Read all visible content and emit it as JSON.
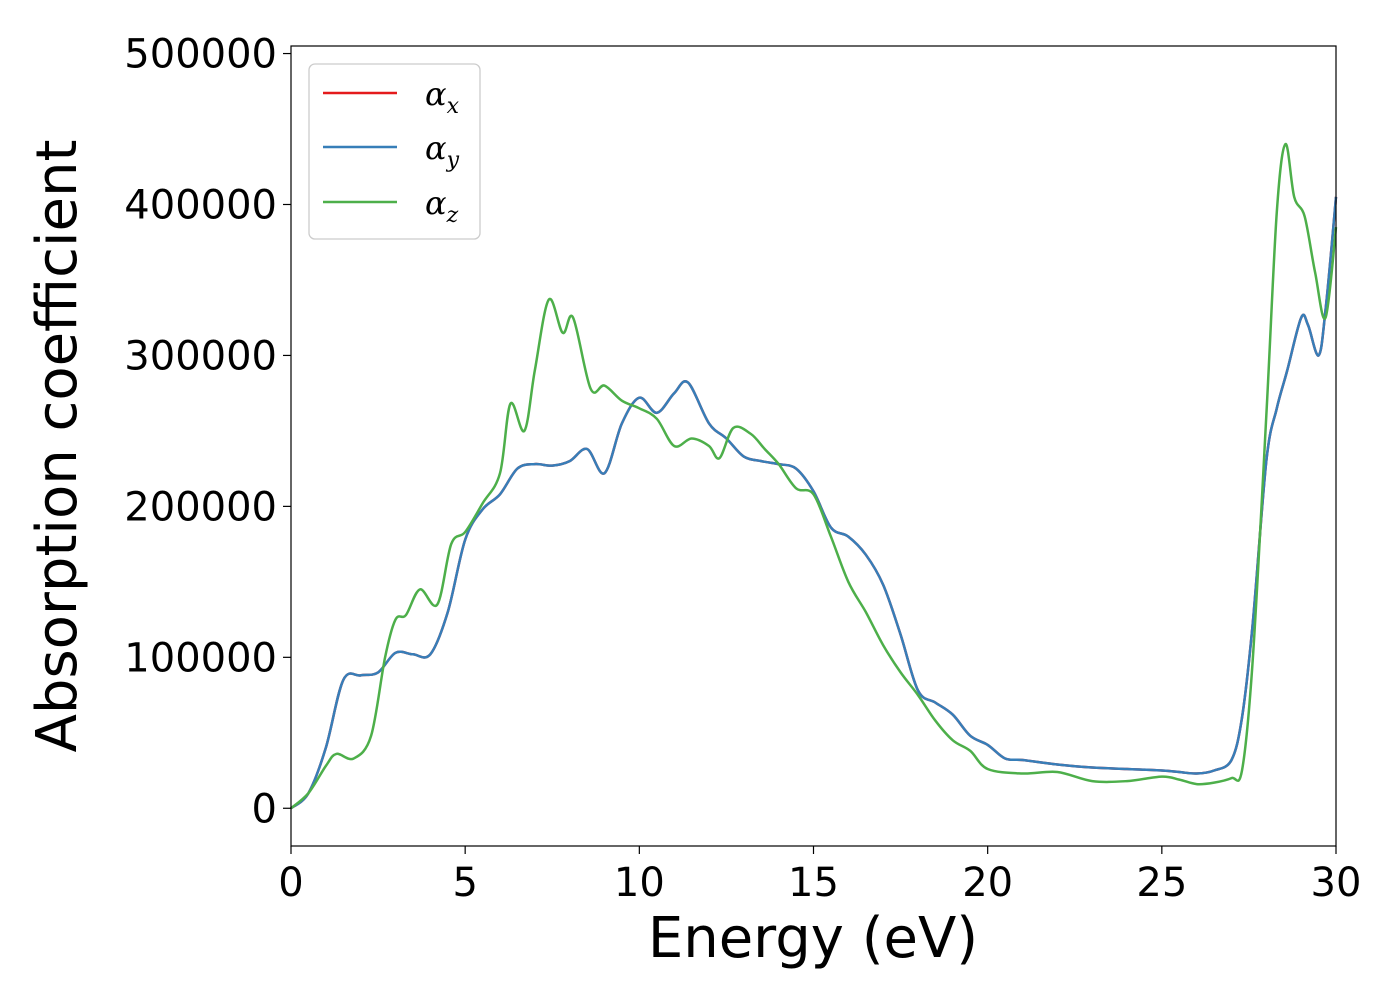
{
  "chart_data": {
    "type": "line",
    "xlabel": "Energy (eV)",
    "ylabel": "Absorption coefficient",
    "xlim": [
      0,
      30
    ],
    "ylim": [
      -25000,
      505000
    ],
    "xticks": [
      0,
      5,
      10,
      15,
      20,
      25,
      30
    ],
    "yticks": [
      0,
      100000,
      200000,
      300000,
      400000,
      500000
    ],
    "xtick_labels": [
      "0",
      "5",
      "10",
      "15",
      "20",
      "25",
      "30"
    ],
    "ytick_labels": [
      "0",
      "100000",
      "200000",
      "300000",
      "400000",
      "500000"
    ],
    "grid": false,
    "legend": {
      "placement": "top-left",
      "entries": [
        {
          "base": "α",
          "sub": "x"
        },
        {
          "base": "α",
          "sub": "y"
        },
        {
          "base": "α",
          "sub": "z"
        }
      ]
    },
    "colors": {
      "alpha_x": "#e41a1c",
      "alpha_y": "#377eb8",
      "alpha_z": "#4daf4a"
    },
    "series": [
      {
        "name": "αx",
        "color": "#e41a1c",
        "x": [
          0,
          0.5,
          1.0,
          1.5,
          2.0,
          2.5,
          3.0,
          3.5,
          4.0,
          4.5,
          5.0,
          5.5,
          6.0,
          6.5,
          7.0,
          7.5,
          8.0,
          8.5,
          9.0,
          9.5,
          10.0,
          10.5,
          11.0,
          11.4,
          12.0,
          12.5,
          13.0,
          13.5,
          14.0,
          14.5,
          15.0,
          15.5,
          16.0,
          16.5,
          17.0,
          17.5,
          18.0,
          18.5,
          19.0,
          19.5,
          20.0,
          20.5,
          21.0,
          22.0,
          23.0,
          24.0,
          25.0,
          25.5,
          26.0,
          26.5,
          27.0,
          27.3,
          27.6,
          28.0,
          28.3,
          28.6,
          29.0,
          29.2,
          29.5,
          29.7,
          30.0
        ],
        "y": [
          0,
          10000,
          40000,
          85000,
          88000,
          90000,
          103000,
          102000,
          102000,
          130000,
          178000,
          198000,
          208000,
          225000,
          228000,
          227000,
          230000,
          238000,
          222000,
          255000,
          272000,
          262000,
          275000,
          282000,
          255000,
          245000,
          233000,
          230000,
          228000,
          225000,
          210000,
          186000,
          180000,
          168000,
          148000,
          115000,
          78000,
          70000,
          62000,
          48000,
          42000,
          33000,
          32000,
          29000,
          27000,
          26000,
          25000,
          24000,
          23000,
          25000,
          32000,
          60000,
          120000,
          230000,
          265000,
          290000,
          325000,
          320000,
          300000,
          330000,
          405000
        ]
      },
      {
        "name": "αy",
        "color": "#377eb8",
        "x": [
          0,
          0.5,
          1.0,
          1.5,
          2.0,
          2.5,
          3.0,
          3.5,
          4.0,
          4.5,
          5.0,
          5.5,
          6.0,
          6.5,
          7.0,
          7.5,
          8.0,
          8.5,
          9.0,
          9.5,
          10.0,
          10.5,
          11.0,
          11.4,
          12.0,
          12.5,
          13.0,
          13.5,
          14.0,
          14.5,
          15.0,
          15.5,
          16.0,
          16.5,
          17.0,
          17.5,
          18.0,
          18.5,
          19.0,
          19.5,
          20.0,
          20.5,
          21.0,
          22.0,
          23.0,
          24.0,
          25.0,
          25.5,
          26.0,
          26.5,
          27.0,
          27.3,
          27.6,
          28.0,
          28.3,
          28.6,
          29.0,
          29.2,
          29.5,
          29.7,
          30.0
        ],
        "y": [
          0,
          10000,
          40000,
          85000,
          88000,
          90000,
          103000,
          102000,
          102000,
          130000,
          178000,
          198000,
          208000,
          225000,
          228000,
          227000,
          230000,
          238000,
          222000,
          255000,
          272000,
          262000,
          275000,
          282000,
          255000,
          245000,
          233000,
          230000,
          228000,
          225000,
          210000,
          186000,
          180000,
          168000,
          148000,
          115000,
          78000,
          70000,
          62000,
          48000,
          42000,
          33000,
          32000,
          29000,
          27000,
          26000,
          25000,
          24000,
          23000,
          25000,
          32000,
          60000,
          120000,
          230000,
          265000,
          290000,
          325000,
          320000,
          300000,
          330000,
          405000
        ]
      },
      {
        "name": "αz",
        "color": "#4daf4a",
        "x": [
          0,
          0.5,
          1.0,
          1.3,
          1.8,
          2.3,
          2.7,
          3.0,
          3.3,
          3.7,
          4.2,
          4.6,
          5.0,
          5.5,
          6.0,
          6.3,
          6.7,
          7.0,
          7.4,
          7.8,
          8.1,
          8.6,
          9.0,
          9.5,
          10.0,
          10.5,
          11.0,
          11.5,
          12.0,
          12.3,
          12.7,
          13.2,
          13.6,
          14.0,
          14.5,
          15.0,
          15.5,
          16.0,
          16.5,
          17.0,
          17.5,
          18.0,
          18.5,
          19.0,
          19.5,
          20.0,
          21.0,
          22.0,
          23.0,
          24.0,
          25.0,
          25.5,
          26.0,
          26.5,
          27.0,
          27.3,
          27.6,
          28.0,
          28.3,
          28.55,
          28.8,
          29.1,
          29.4,
          29.7,
          30.0
        ],
        "y": [
          0,
          10000,
          28000,
          36000,
          33000,
          48000,
          100000,
          125000,
          128000,
          145000,
          135000,
          175000,
          183000,
          202000,
          222000,
          268000,
          250000,
          290000,
          337000,
          315000,
          325000,
          278000,
          280000,
          270000,
          265000,
          258000,
          240000,
          245000,
          240000,
          232000,
          252000,
          248000,
          238000,
          228000,
          212000,
          208000,
          180000,
          150000,
          130000,
          108000,
          90000,
          75000,
          58000,
          45000,
          38000,
          26000,
          23000,
          24000,
          18000,
          18000,
          21000,
          19000,
          16000,
          17000,
          20000,
          25000,
          95000,
          260000,
          395000,
          440000,
          405000,
          392000,
          355000,
          325000,
          385000
        ]
      }
    ]
  }
}
